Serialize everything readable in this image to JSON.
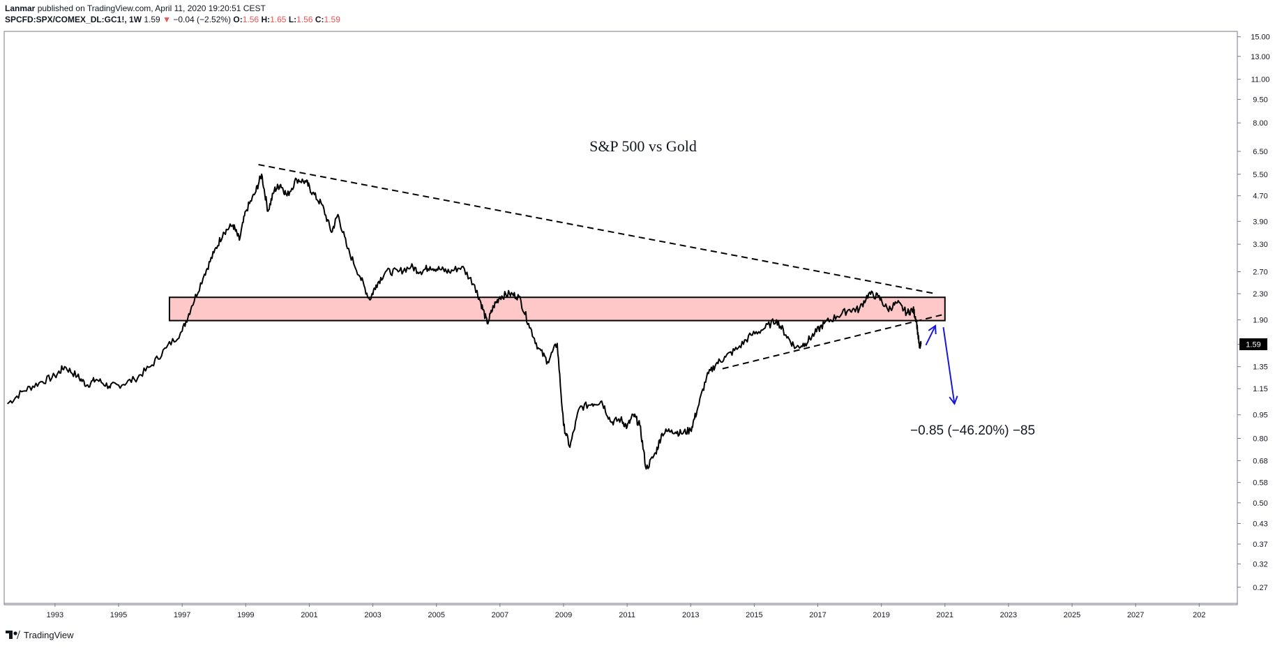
{
  "header": {
    "author": "Lanmar",
    "published_text": "published on TradingView.com, April 11, 2020 19:20:51 CEST",
    "symbol": "SPCFD:SPX/COMEX_DL:GC1!, 1W",
    "last": "1.59",
    "change_arrow": "▼",
    "change": "−0.04 (−2.52%)",
    "o_label": "O:",
    "o_value": "1.56",
    "h_label": "H:",
    "h_value": "1.65",
    "l_label": "L:",
    "l_value": "1.56",
    "c_label": "C:",
    "c_value": "1.59"
  },
  "footer": {
    "brand": "TradingView"
  },
  "colors": {
    "line": "#000000",
    "zone_fill": "#ffc8c8",
    "arrow": "#1717d8",
    "price_tag": "#000000"
  },
  "chart_data": {
    "type": "line",
    "title": "S&P 500 vs Gold",
    "y_scale": "log",
    "ylim": [
      0.24,
      15.6
    ],
    "xlim": [
      1991.4,
      2030.2
    ],
    "y_ticks": [
      "15.00",
      "13.00",
      "11.00",
      "9.50",
      "8.00",
      "6.50",
      "5.50",
      "4.70",
      "3.90",
      "3.30",
      "2.70",
      "2.30",
      "1.90",
      "1.59",
      "1.35",
      "1.15",
      "0.95",
      "0.80",
      "0.68",
      "0.58",
      "0.50",
      "0.43",
      "0.37",
      "0.32",
      "0.27"
    ],
    "x_ticks": [
      "1993",
      "1995",
      "1997",
      "1999",
      "2001",
      "2003",
      "2005",
      "2007",
      "2009",
      "2011",
      "2013",
      "2015",
      "2017",
      "2019",
      "2021",
      "2023",
      "2025",
      "2027",
      "202"
    ],
    "last_price_label": "1.59",
    "series": [
      {
        "points": [
          [
            1991.5,
            1.03
          ],
          [
            1992.0,
            1.13
          ],
          [
            1992.5,
            1.2
          ],
          [
            1993.0,
            1.26
          ],
          [
            1993.3,
            1.35
          ],
          [
            1993.7,
            1.26
          ],
          [
            1994.0,
            1.18
          ],
          [
            1994.3,
            1.23
          ],
          [
            1994.7,
            1.17
          ],
          [
            1995.0,
            1.18
          ],
          [
            1995.5,
            1.23
          ],
          [
            1996.0,
            1.35
          ],
          [
            1996.5,
            1.55
          ],
          [
            1997.0,
            1.75
          ],
          [
            1997.3,
            2.1
          ],
          [
            1997.7,
            2.65
          ],
          [
            1998.0,
            3.1
          ],
          [
            1998.3,
            3.6
          ],
          [
            1998.6,
            3.8
          ],
          [
            1998.8,
            3.4
          ],
          [
            1999.0,
            4.2
          ],
          [
            1999.3,
            4.8
          ],
          [
            1999.5,
            5.5
          ],
          [
            1999.7,
            4.2
          ],
          [
            1999.9,
            4.9
          ],
          [
            2000.1,
            5.1
          ],
          [
            2000.3,
            4.7
          ],
          [
            2000.6,
            5.3
          ],
          [
            2000.9,
            5.2
          ],
          [
            2001.1,
            4.8
          ],
          [
            2001.4,
            4.4
          ],
          [
            2001.7,
            3.6
          ],
          [
            2001.9,
            4.1
          ],
          [
            2002.2,
            3.2
          ],
          [
            2002.6,
            2.6
          ],
          [
            2002.9,
            2.2
          ],
          [
            2003.1,
            2.45
          ],
          [
            2003.4,
            2.7
          ],
          [
            2003.8,
            2.7
          ],
          [
            2004.2,
            2.8
          ],
          [
            2004.5,
            2.7
          ],
          [
            2004.8,
            2.8
          ],
          [
            2005.1,
            2.75
          ],
          [
            2005.4,
            2.7
          ],
          [
            2005.8,
            2.8
          ],
          [
            2006.2,
            2.45
          ],
          [
            2006.4,
            2.15
          ],
          [
            2006.6,
            1.85
          ],
          [
            2006.8,
            2.1
          ],
          [
            2007.0,
            2.25
          ],
          [
            2007.3,
            2.3
          ],
          [
            2007.6,
            2.25
          ],
          [
            2007.9,
            1.85
          ],
          [
            2008.2,
            1.55
          ],
          [
            2008.5,
            1.4
          ],
          [
            2008.8,
            1.6
          ],
          [
            2009.0,
            0.88
          ],
          [
            2009.2,
            0.75
          ],
          [
            2009.5,
            1.0
          ],
          [
            2009.9,
            1.03
          ],
          [
            2010.2,
            1.05
          ],
          [
            2010.5,
            0.9
          ],
          [
            2010.8,
            0.92
          ],
          [
            2011.0,
            0.87
          ],
          [
            2011.2,
            0.95
          ],
          [
            2011.4,
            0.88
          ],
          [
            2011.6,
            0.64
          ],
          [
            2011.9,
            0.72
          ],
          [
            2012.1,
            0.83
          ],
          [
            2012.4,
            0.85
          ],
          [
            2012.7,
            0.83
          ],
          [
            2013.0,
            0.85
          ],
          [
            2013.2,
            0.98
          ],
          [
            2013.5,
            1.25
          ],
          [
            2013.8,
            1.38
          ],
          [
            2014.1,
            1.45
          ],
          [
            2014.5,
            1.55
          ],
          [
            2014.9,
            1.7
          ],
          [
            2015.3,
            1.78
          ],
          [
            2015.7,
            1.9
          ],
          [
            2016.0,
            1.7
          ],
          [
            2016.3,
            1.55
          ],
          [
            2016.6,
            1.6
          ],
          [
            2016.9,
            1.72
          ],
          [
            2017.2,
            1.85
          ],
          [
            2017.6,
            1.95
          ],
          [
            2018.0,
            2.05
          ],
          [
            2018.3,
            2.05
          ],
          [
            2018.6,
            2.3
          ],
          [
            2018.9,
            2.25
          ],
          [
            2019.2,
            2.05
          ],
          [
            2019.5,
            2.15
          ],
          [
            2019.8,
            2.0
          ],
          [
            2020.0,
            2.05
          ],
          [
            2020.1,
            1.9
          ],
          [
            2020.2,
            1.55
          ],
          [
            2020.25,
            1.59
          ]
        ]
      }
    ],
    "annotations": {
      "upper_trendline": [
        [
          1999.4,
          5.9
        ],
        [
          2020.7,
          2.3
        ]
      ],
      "lower_trendline": [
        [
          2014.0,
          1.33
        ],
        [
          2020.9,
          1.97
        ]
      ],
      "zone": {
        "x": [
          1996.6,
          2021.0
        ],
        "y": [
          1.89,
          2.24
        ]
      },
      "arrows": [
        {
          "from": [
            2020.4,
            1.58
          ],
          "to": [
            2020.7,
            1.82
          ]
        },
        {
          "from": [
            2020.95,
            1.8
          ],
          "to": [
            2021.3,
            1.03
          ]
        }
      ],
      "measure_label": "−0.85 (−46.20%) −85"
    }
  }
}
